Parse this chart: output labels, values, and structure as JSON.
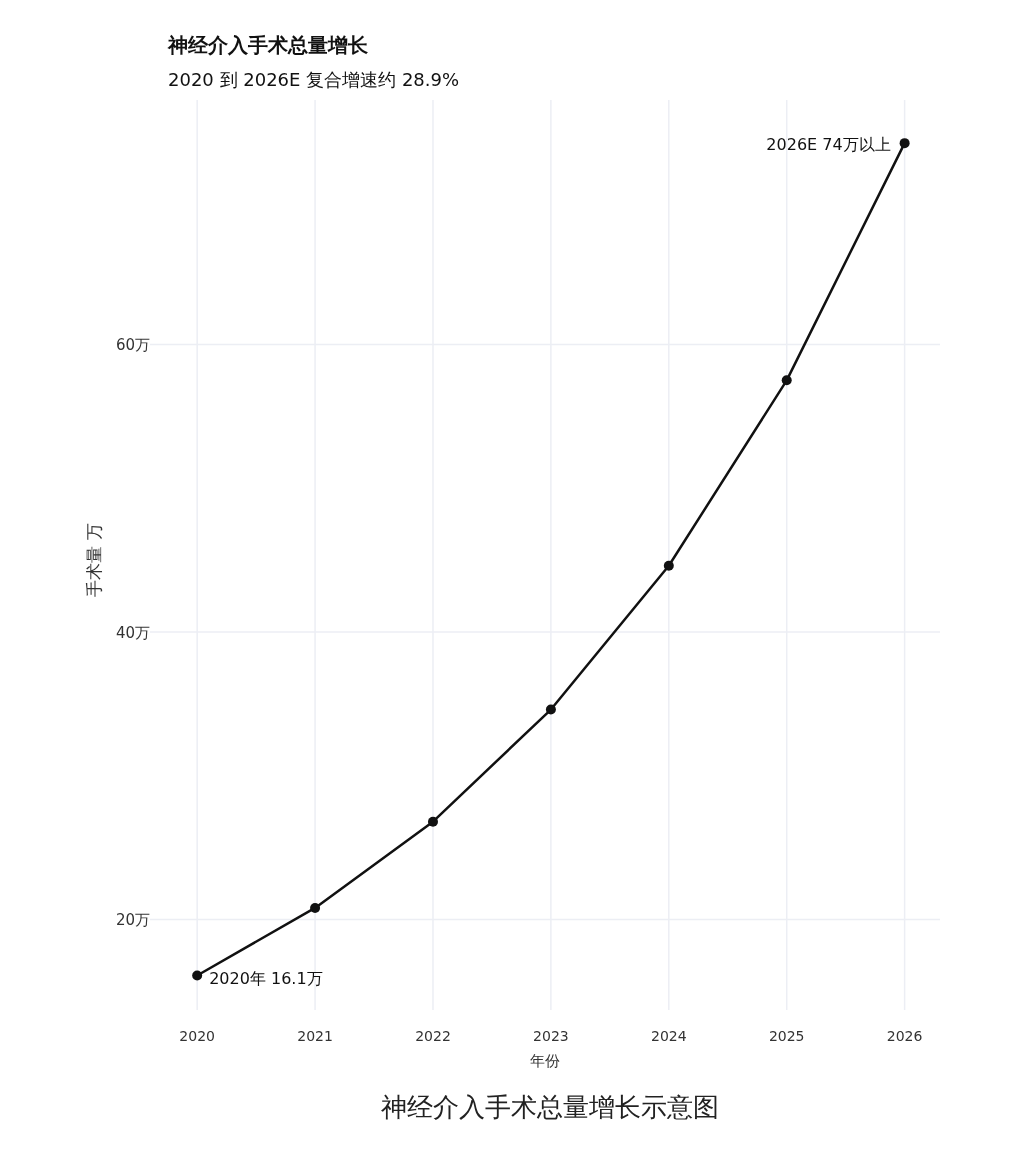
{
  "chart_data": {
    "type": "line",
    "title": "神经介入手术总量增长",
    "subtitle": "2020 到 2026E 复合增速约 28.9%",
    "xlabel": "年份",
    "ylabel": "手术量 万",
    "x": [
      2020,
      2021,
      2022,
      2023,
      2024,
      2025,
      2026
    ],
    "series": [
      {
        "color": "#111111",
        "values": [
          16.1,
          20.8,
          26.8,
          34.6,
          44.6,
          57.5,
          74
        ]
      }
    ],
    "xlim": [
      2019.6,
      2026.3
    ],
    "ylim": [
      13.7,
      77
    ],
    "xticks": [
      2020,
      2021,
      2022,
      2023,
      2024,
      2025,
      2026
    ],
    "yticks": [
      {
        "value": 20,
        "label": "20万"
      },
      {
        "value": 40,
        "label": "40万"
      },
      {
        "value": 60,
        "label": "60万"
      }
    ],
    "grid": true,
    "marker": "circle",
    "line_style": "solid",
    "annotations": [
      {
        "text": "2020年  16.1万",
        "x": 2020,
        "y": 16.1
      },
      {
        "text": "2026E  74万以上",
        "x": 2026,
        "y": 74
      },
      "神经介入手术总量增长示意图"
    ]
  }
}
